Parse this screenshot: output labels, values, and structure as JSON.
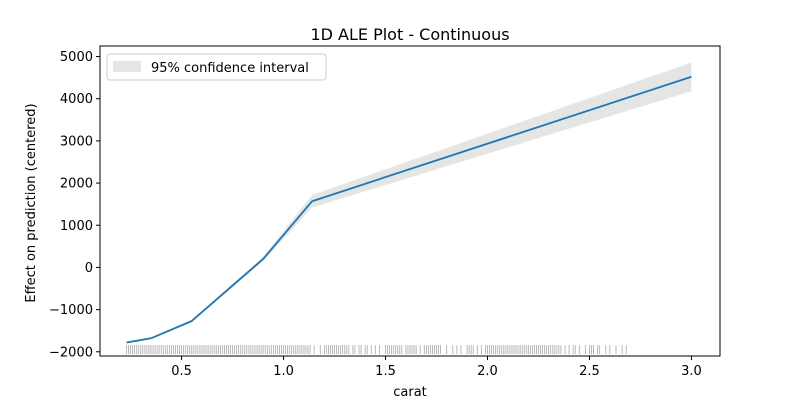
{
  "chart_data": {
    "type": "line",
    "title": "1D ALE Plot - Continuous",
    "xlabel": "carat",
    "ylabel": "Effect on prediction (centered)",
    "xlim": [
      0.1,
      3.14
    ],
    "ylim": [
      -2100,
      5250
    ],
    "xticks": [
      0.5,
      1.0,
      1.5,
      2.0,
      2.5,
      3.0
    ],
    "xtick_labels": [
      "0.5",
      "1.0",
      "1.5",
      "2.0",
      "2.5",
      "3.0"
    ],
    "yticks": [
      -2000,
      -1000,
      0,
      1000,
      2000,
      3000,
      4000,
      5000
    ],
    "ytick_labels": [
      "−2000",
      "−1000",
      "0",
      "1000",
      "2000",
      "3000",
      "4000",
      "5000"
    ],
    "grid": false,
    "legend": {
      "placement": "top-left",
      "entries": [
        "95% confidence interval"
      ]
    },
    "series": [
      {
        "x": [
          0.23,
          0.35,
          0.55,
          0.9,
          1.14,
          3.0
        ],
        "y": [
          -1780,
          -1680,
          -1270,
          200,
          1570,
          4520
        ],
        "ci_lower": [
          -1800,
          -1700,
          -1300,
          150,
          1420,
          4180
        ],
        "ci_upper": [
          -1760,
          -1660,
          -1240,
          250,
          1720,
          4860
        ],
        "color": "#1f77b4",
        "ci_color": "#d3d3d3"
      }
    ],
    "rug": {
      "y": -1950,
      "x": [
        0.23,
        0.24,
        0.25,
        0.26,
        0.27,
        0.28,
        0.29,
        0.3,
        0.31,
        0.32,
        0.33,
        0.34,
        0.35,
        0.36,
        0.37,
        0.38,
        0.39,
        0.4,
        0.41,
        0.42,
        0.43,
        0.44,
        0.45,
        0.46,
        0.47,
        0.48,
        0.49,
        0.5,
        0.51,
        0.52,
        0.53,
        0.54,
        0.55,
        0.56,
        0.57,
        0.58,
        0.59,
        0.6,
        0.61,
        0.62,
        0.63,
        0.64,
        0.65,
        0.66,
        0.67,
        0.68,
        0.69,
        0.7,
        0.71,
        0.72,
        0.73,
        0.74,
        0.75,
        0.76,
        0.77,
        0.78,
        0.79,
        0.8,
        0.81,
        0.82,
        0.83,
        0.84,
        0.85,
        0.86,
        0.87,
        0.88,
        0.89,
        0.9,
        0.91,
        0.92,
        0.93,
        0.94,
        0.95,
        0.96,
        0.97,
        0.98,
        0.99,
        1.0,
        1.01,
        1.02,
        1.03,
        1.04,
        1.05,
        1.06,
        1.07,
        1.08,
        1.09,
        1.1,
        1.11,
        1.12,
        1.13,
        1.15,
        1.18,
        1.2,
        1.21,
        1.22,
        1.23,
        1.24,
        1.25,
        1.26,
        1.27,
        1.28,
        1.29,
        1.3,
        1.31,
        1.32,
        1.34,
        1.35,
        1.37,
        1.38,
        1.4,
        1.41,
        1.43,
        1.45,
        1.47,
        1.5,
        1.51,
        1.52,
        1.53,
        1.54,
        1.55,
        1.56,
        1.57,
        1.58,
        1.6,
        1.61,
        1.62,
        1.63,
        1.64,
        1.65,
        1.67,
        1.69,
        1.7,
        1.71,
        1.72,
        1.73,
        1.74,
        1.75,
        1.76,
        1.77,
        1.8,
        1.83,
        1.85,
        1.87,
        1.9,
        1.91,
        1.92,
        1.93,
        1.95,
        1.97,
        1.99,
        2.0,
        2.01,
        2.02,
        2.03,
        2.04,
        2.05,
        2.06,
        2.07,
        2.08,
        2.09,
        2.1,
        2.11,
        2.12,
        2.13,
        2.14,
        2.15,
        2.16,
        2.17,
        2.18,
        2.19,
        2.2,
        2.21,
        2.22,
        2.23,
        2.24,
        2.25,
        2.26,
        2.27,
        2.28,
        2.29,
        2.3,
        2.31,
        2.32,
        2.33,
        2.34,
        2.35,
        2.36,
        2.38,
        2.4,
        2.42,
        2.43,
        2.45,
        2.48,
        2.5,
        2.51,
        2.52,
        2.54,
        2.55,
        2.58,
        2.6,
        2.63,
        2.66,
        2.68
      ]
    }
  }
}
